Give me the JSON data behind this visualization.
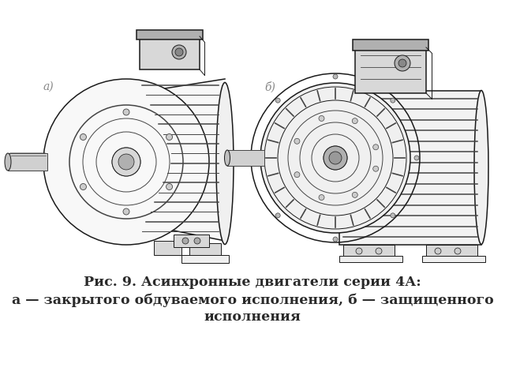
{
  "title_line1": "Рис. 9. Асинхронные двигатели серии 4А:",
  "title_line2": "а — закрытого обдуваемого исполнения, б — защищенного",
  "title_line3": "исполнения",
  "label_a": "а)",
  "label_b": "б)",
  "bg_color": "#ffffff",
  "text_color": "#2a2a2a",
  "title_fontsize": 12.5,
  "label_fontsize": 10,
  "label_color": "#888888",
  "fig_width": 6.4,
  "fig_height": 4.8,
  "dpi": 100
}
